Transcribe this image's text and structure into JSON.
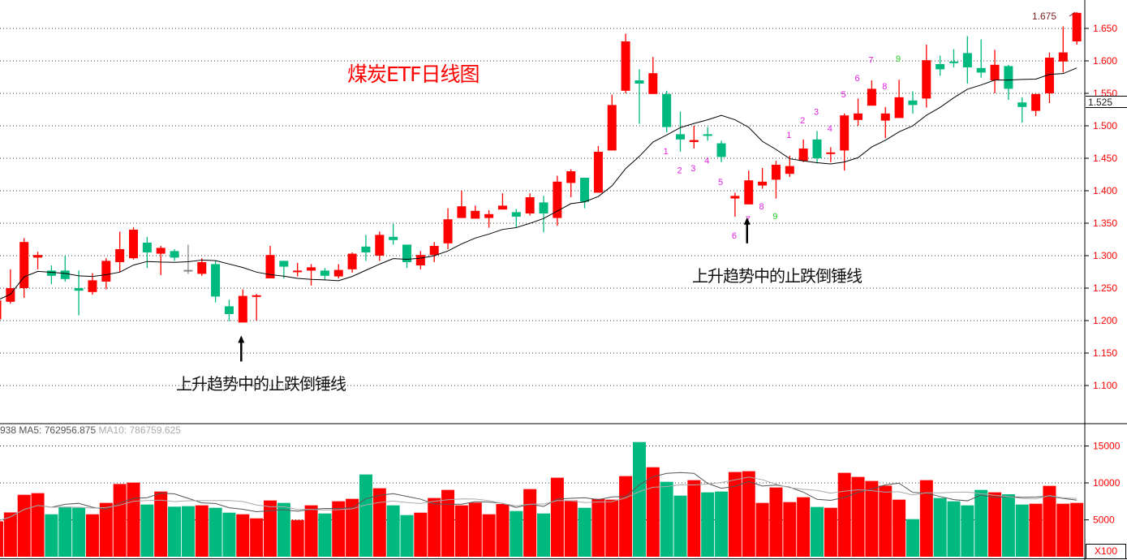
{
  "chart_data": {
    "type": "candlestick",
    "title": "煤炭ETF日线图",
    "y_ticks": [
      "1.650",
      "1.600",
      "1.550",
      "1.500",
      "1.450",
      "1.400",
      "1.350",
      "1.300",
      "1.250",
      "1.200",
      "1.150",
      "1.100"
    ],
    "y_tick_values": [
      1.65,
      1.6,
      1.55,
      1.5,
      1.45,
      1.4,
      1.35,
      1.3,
      1.25,
      1.2,
      1.15,
      1.1
    ],
    "ylim": [
      1.065,
      1.694
    ],
    "grid": true,
    "ma_line": "MA10",
    "high_label": "1.675",
    "price_marker": "1.525",
    "candles_ohlc": [
      [
        1.202,
        1.232,
        1.2,
        1.231
      ],
      [
        1.229,
        1.279,
        1.226,
        1.25
      ],
      [
        1.25,
        1.327,
        1.235,
        1.321
      ],
      [
        1.297,
        1.306,
        1.279,
        1.301
      ],
      [
        1.277,
        1.285,
        1.256,
        1.269
      ],
      [
        1.277,
        1.3,
        1.26,
        1.264
      ],
      [
        1.25,
        1.277,
        1.208,
        1.246
      ],
      [
        1.244,
        1.273,
        1.24,
        1.262
      ],
      [
        1.26,
        1.296,
        1.248,
        1.292
      ],
      [
        1.29,
        1.337,
        1.275,
        1.31
      ],
      [
        1.296,
        1.344,
        1.294,
        1.34
      ],
      [
        1.32,
        1.329,
        1.281,
        1.305
      ],
      [
        1.303,
        1.315,
        1.27,
        1.312
      ],
      [
        1.307,
        1.31,
        1.292,
        1.297
      ],
      [
        1.278,
        1.317,
        1.272,
        1.278
      ],
      [
        1.272,
        1.296,
        1.269,
        1.29
      ],
      [
        1.287,
        1.292,
        1.228,
        1.237
      ],
      [
        1.222,
        1.232,
        1.199,
        1.21
      ],
      [
        1.197,
        1.248,
        1.197,
        1.238
      ],
      [
        1.238,
        1.241,
        1.2,
        1.239
      ],
      [
        1.265,
        1.315,
        1.265,
        1.301
      ],
      [
        1.292,
        1.292,
        1.265,
        1.283
      ],
      [
        1.275,
        1.289,
        1.268,
        1.277
      ],
      [
        1.277,
        1.287,
        1.254,
        1.282
      ],
      [
        1.277,
        1.281,
        1.263,
        1.269
      ],
      [
        1.268,
        1.287,
        1.265,
        1.278
      ],
      [
        1.279,
        1.305,
        1.274,
        1.303
      ],
      [
        1.314,
        1.332,
        1.292,
        1.305
      ],
      [
        1.3,
        1.337,
        1.292,
        1.332
      ],
      [
        1.329,
        1.349,
        1.317,
        1.324
      ],
      [
        1.317,
        1.317,
        1.281,
        1.29
      ],
      [
        1.285,
        1.307,
        1.279,
        1.301
      ],
      [
        1.301,
        1.321,
        1.29,
        1.315
      ],
      [
        1.319,
        1.373,
        1.31,
        1.356
      ],
      [
        1.358,
        1.4,
        1.358,
        1.376
      ],
      [
        1.357,
        1.377,
        1.357,
        1.369
      ],
      [
        1.358,
        1.37,
        1.343,
        1.364
      ],
      [
        1.371,
        1.396,
        1.371,
        1.377
      ],
      [
        1.367,
        1.372,
        1.344,
        1.36
      ],
      [
        1.365,
        1.396,
        1.362,
        1.39
      ],
      [
        1.382,
        1.392,
        1.336,
        1.365
      ],
      [
        1.358,
        1.423,
        1.346,
        1.414
      ],
      [
        1.412,
        1.433,
        1.39,
        1.43
      ],
      [
        1.42,
        1.42,
        1.373,
        1.383
      ],
      [
        1.397,
        1.469,
        1.397,
        1.46
      ],
      [
        1.462,
        1.548,
        1.462,
        1.532
      ],
      [
        1.554,
        1.642,
        1.55,
        1.63
      ],
      [
        1.57,
        1.587,
        1.503,
        1.565
      ],
      [
        1.549,
        1.606,
        1.549,
        1.581
      ],
      [
        1.549,
        1.554,
        1.49,
        1.498
      ],
      [
        1.487,
        1.522,
        1.46,
        1.479
      ],
      [
        1.475,
        1.5,
        1.465,
        1.478
      ],
      [
        1.487,
        1.498,
        1.477,
        1.486
      ],
      [
        1.473,
        1.477,
        1.444,
        1.452
      ],
      [
        1.388,
        1.397,
        1.36,
        1.392
      ],
      [
        1.379,
        1.431,
        1.379,
        1.416
      ],
      [
        1.408,
        1.435,
        1.403,
        1.414
      ],
      [
        1.417,
        1.446,
        1.388,
        1.44
      ],
      [
        1.426,
        1.454,
        1.421,
        1.438
      ],
      [
        1.446,
        1.479,
        1.444,
        1.465
      ],
      [
        1.479,
        1.492,
        1.442,
        1.45
      ],
      [
        1.457,
        1.467,
        1.444,
        1.459
      ],
      [
        1.462,
        1.519,
        1.431,
        1.516
      ],
      [
        1.509,
        1.542,
        1.5,
        1.519
      ],
      [
        1.531,
        1.57,
        1.531,
        1.557
      ],
      [
        1.508,
        1.529,
        1.481,
        1.519
      ],
      [
        1.512,
        1.571,
        1.512,
        1.544
      ],
      [
        1.539,
        1.553,
        1.519,
        1.532
      ],
      [
        1.542,
        1.625,
        1.528,
        1.601
      ],
      [
        1.595,
        1.608,
        1.577,
        1.587
      ],
      [
        1.599,
        1.618,
        1.59,
        1.598
      ],
      [
        1.612,
        1.638,
        1.565,
        1.59
      ],
      [
        1.589,
        1.633,
        1.574,
        1.582
      ],
      [
        1.57,
        1.617,
        1.55,
        1.594
      ],
      [
        1.592,
        1.594,
        1.54,
        1.557
      ],
      [
        1.536,
        1.544,
        1.505,
        1.529
      ],
      [
        1.523,
        1.549,
        1.515,
        1.549
      ],
      [
        1.55,
        1.613,
        1.535,
        1.605
      ],
      [
        1.599,
        1.653,
        1.582,
        1.613
      ],
      [
        1.63,
        1.675,
        1.625,
        1.674
      ]
    ],
    "volume": [
      4800,
      6000,
      8390,
      8610,
      5750,
      6780,
      6630,
      5750,
      7290,
      9850,
      10040,
      7070,
      8830,
      6780,
      6850,
      6960,
      6630,
      5970,
      5750,
      5200,
      7620,
      7290,
      4980,
      6960,
      5860,
      7510,
      7840,
      11140,
      9270,
      6960,
      5640,
      5970,
      7950,
      9050,
      6960,
      7330,
      5750,
      7140,
      6190,
      9160,
      5860,
      10700,
      7620,
      6630,
      7840,
      7730,
      10920,
      15530,
      12120,
      10150,
      8280,
      10370,
      8720,
      8830,
      11470,
      11580,
      7290,
      9380,
      7400,
      8060,
      6740,
      6630,
      11360,
      10810,
      10260,
      9630,
      7730,
      5090,
      10370,
      7950,
      7510,
      6960,
      9050,
      8720,
      8460,
      7070,
      7180,
      9600,
      7180,
      7290
    ],
    "volume_ticks": [
      "15000",
      "10000",
      "5000"
    ],
    "volume_tick_values": [
      15000,
      10000,
      5000
    ],
    "volume_unit": "X100",
    "volume_header": {
      "prefix": "938",
      "ma5": "MA5: 762956.875",
      "ma10": "MA10: 786759.625"
    },
    "annotations": [
      {
        "text": "上升趋势中的止跌倒锤线",
        "candle_index": 18
      },
      {
        "text": "上升趋势中的止跌倒锤线",
        "candle_index": 55
      }
    ],
    "td_counts": [
      {
        "label": "1",
        "candle": 49,
        "price": 1.461,
        "color": "#e020e0"
      },
      {
        "label": "2",
        "candle": 50,
        "price": 1.432,
        "color": "#e020e0"
      },
      {
        "label": "3",
        "candle": 51,
        "price": 1.435,
        "color": "#e020e0"
      },
      {
        "label": "4",
        "candle": 52,
        "price": 1.447,
        "color": "#e020e0"
      },
      {
        "label": "5",
        "candle": 53,
        "price": 1.414,
        "color": "#e020e0"
      },
      {
        "label": "6",
        "candle": 54,
        "price": 1.331,
        "color": "#e020e0"
      },
      {
        "label": "7",
        "candle": 55,
        "price": 1.356,
        "color": "#e020e0"
      },
      {
        "label": "8",
        "candle": 56,
        "price": 1.376,
        "color": "#e020e0"
      },
      {
        "label": "9",
        "candle": 57,
        "price": 1.361,
        "color": "#22cc22"
      },
      {
        "label": "1",
        "candle": 58,
        "price": 1.486,
        "color": "#e020e0"
      },
      {
        "label": "2",
        "candle": 59,
        "price": 1.509,
        "color": "#e020e0"
      },
      {
        "label": "3",
        "candle": 60,
        "price": 1.522,
        "color": "#e020e0"
      },
      {
        "label": "4",
        "candle": 61,
        "price": 1.496,
        "color": "#e020e0"
      },
      {
        "label": "5",
        "candle": 62,
        "price": 1.549,
        "color": "#e020e0"
      },
      {
        "label": "6",
        "candle": 63,
        "price": 1.574,
        "color": "#e020e0"
      },
      {
        "label": "7",
        "candle": 64,
        "price": 1.602,
        "color": "#e020e0"
      },
      {
        "label": "8",
        "candle": 65,
        "price": 1.561,
        "color": "#e020e0"
      },
      {
        "label": "9",
        "candle": 66,
        "price": 1.604,
        "color": "#22cc22"
      }
    ],
    "colors": {
      "up": "#ff0000",
      "down": "#00b97e",
      "doji": "#888888",
      "ma": "#000000",
      "vol_ma5": "#555555",
      "vol_ma10": "#aaaaaa",
      "axis_labels": "#ff0000",
      "title": "#ff0000"
    }
  }
}
